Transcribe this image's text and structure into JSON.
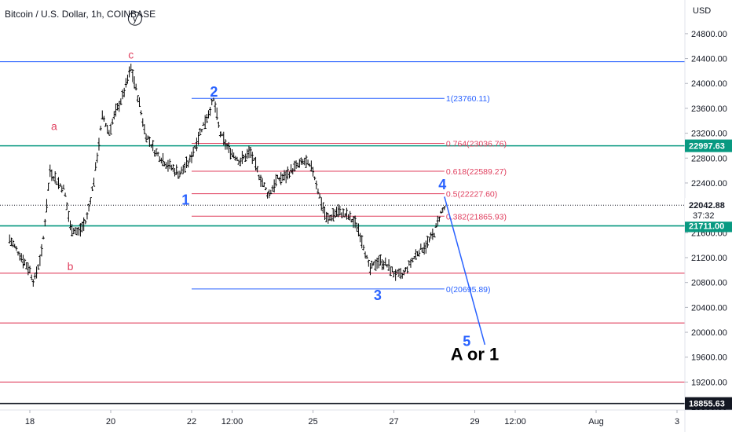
{
  "header": {
    "ticker": "Bitcoin / U.S. Dollar, 1h, COINBASE"
  },
  "colors": {
    "blue": "#2962ff",
    "red": "#e0405f",
    "green": "#089981",
    "black": "#131722",
    "grey": "#787b86"
  },
  "chart_data": {
    "type": "ohlc",
    "title": "Bitcoin / U.S. Dollar, 1h, COINBASE",
    "y_axis_unit": "USD",
    "ylim": [
      18700,
      25200
    ],
    "y_ticks": [
      18800,
      19200,
      19600,
      20000,
      20400,
      20800,
      21200,
      21600,
      22000,
      22400,
      22800,
      23200,
      23600,
      24000,
      24400,
      24800
    ],
    "x_ticks": [
      {
        "label": "18",
        "day": 0
      },
      {
        "label": "20",
        "day": 2
      },
      {
        "label": "22",
        "day": 4
      },
      {
        "label": "12:00",
        "day": 5
      },
      {
        "label": "25",
        "day": 7
      },
      {
        "label": "27",
        "day": 9
      },
      {
        "label": "29",
        "day": 11
      },
      {
        "label": "12:00",
        "day": 12
      },
      {
        "label": "Aug",
        "day": 14
      },
      {
        "label": "3",
        "day": 16
      }
    ],
    "price_path": [
      [
        -0.5,
        21500
      ],
      [
        0.0,
        21000
      ],
      [
        0.1,
        20800
      ],
      [
        0.3,
        21300
      ],
      [
        0.5,
        22600
      ],
      [
        0.7,
        22400
      ],
      [
        0.85,
        22300
      ],
      [
        1.0,
        21700
      ],
      [
        1.2,
        21600
      ],
      [
        1.4,
        21800
      ],
      [
        1.6,
        22500
      ],
      [
        1.8,
        23500
      ],
      [
        1.95,
        23200
      ],
      [
        2.1,
        23500
      ],
      [
        2.3,
        23800
      ],
      [
        2.5,
        24250
      ],
      [
        2.7,
        23700
      ],
      [
        2.85,
        23200
      ],
      [
        3.1,
        22900
      ],
      [
        3.4,
        22700
      ],
      [
        3.7,
        22550
      ],
      [
        3.95,
        22750
      ],
      [
        4.2,
        23200
      ],
      [
        4.4,
        23500
      ],
      [
        4.55,
        23740
      ],
      [
        4.7,
        23200
      ],
      [
        4.9,
        22950
      ],
      [
        5.2,
        22750
      ],
      [
        5.45,
        22900
      ],
      [
        5.65,
        22550
      ],
      [
        5.9,
        22200
      ],
      [
        6.1,
        22450
      ],
      [
        6.3,
        22500
      ],
      [
        6.55,
        22650
      ],
      [
        6.8,
        22750
      ],
      [
        7.0,
        22600
      ],
      [
        7.2,
        22100
      ],
      [
        7.35,
        21800
      ],
      [
        7.6,
        21950
      ],
      [
        7.9,
        21850
      ],
      [
        8.1,
        21700
      ],
      [
        8.25,
        21400
      ],
      [
        8.4,
        21000
      ],
      [
        8.6,
        21150
      ],
      [
        8.8,
        21100
      ],
      [
        9.0,
        20950
      ],
      [
        9.2,
        20900
      ],
      [
        9.4,
        21100
      ],
      [
        9.6,
        21300
      ],
      [
        9.8,
        21400
      ],
      [
        10.0,
        21600
      ],
      [
        10.15,
        21900
      ],
      [
        10.25,
        22000
      ]
    ],
    "last_price": 22042.88,
    "countdown": "37:32",
    "horizontal_levels": [
      {
        "price": 24350,
        "color": "#2962ff"
      },
      {
        "price": 22997.63,
        "color": "#089981",
        "tag": "22997.63"
      },
      {
        "price": 21711.0,
        "color": "#089981",
        "tag": "21711.00"
      },
      {
        "price": 20950,
        "color": "#e0405f"
      },
      {
        "price": 20150,
        "color": "#e0405f"
      },
      {
        "price": 19200,
        "color": "#e0405f"
      },
      {
        "price": 18855.63,
        "color": "#131722",
        "tag": "18855.63"
      }
    ],
    "fibonacci_levels": [
      {
        "label": "1(23760.11)",
        "price": 23760.11,
        "color": "#2962ff"
      },
      {
        "label": "0.764(23036.76)",
        "price": 23036.76,
        "color": "#e0405f"
      },
      {
        "label": "0.618(22589.27)",
        "price": 22589.27,
        "color": "#e0405f"
      },
      {
        "label": "0.5(22227.60)",
        "price": 22227.6,
        "color": "#e0405f"
      },
      {
        "label": "0.382(21865.93)",
        "price": 21865.93,
        "color": "#e0405f"
      },
      {
        "label": "0(20695.89)",
        "price": 20695.89,
        "color": "#2962ff"
      }
    ],
    "fib_x_range_days": [
      4.0,
      10.25
    ],
    "wave_labels": [
      {
        "text": "y",
        "day": 2.6,
        "price": 24980,
        "style": "circle"
      },
      {
        "text": "c",
        "day": 2.5,
        "price": 24400,
        "style": "red"
      },
      {
        "text": "a",
        "day": 0.6,
        "price": 23250,
        "style": "red"
      },
      {
        "text": "b",
        "day": 1.0,
        "price": 21000,
        "style": "red"
      },
      {
        "text": "1",
        "day": 3.85,
        "price": 22050,
        "style": "blue"
      },
      {
        "text": "2",
        "day": 4.55,
        "price": 23790,
        "style": "blue"
      },
      {
        "text": "3",
        "day": 8.6,
        "price": 20520,
        "style": "blue"
      },
      {
        "text": "4",
        "day": 10.2,
        "price": 22300,
        "style": "blue"
      },
      {
        "text": "5",
        "day": 10.8,
        "price": 19780,
        "style": "blue"
      }
    ],
    "projection": {
      "from": [
        10.25,
        22180
      ],
      "to": [
        11.25,
        19800
      ]
    },
    "note": {
      "text": "A or 1",
      "day": 11.0,
      "price": 19550
    }
  }
}
